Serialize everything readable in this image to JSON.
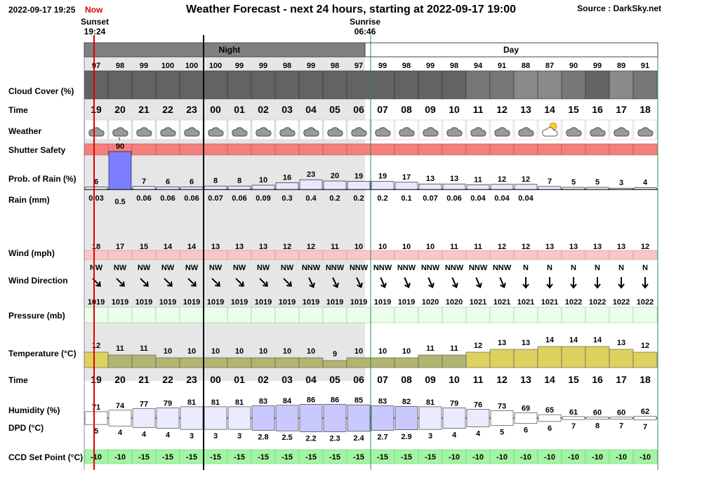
{
  "header": {
    "timestamp": "2022-09-17 19:25",
    "now_label": "Now",
    "title": "Weather Forecast - next 24 hours, starting at 2022-09-17 19:00",
    "source": "Source : DarkSky.net"
  },
  "sun": {
    "sunset_label": "Sunset",
    "sunset_time": "19:24",
    "sunrise_label": "Sunrise",
    "sunrise_time": "06:46"
  },
  "periods": {
    "night": "Night",
    "day": "Day"
  },
  "row_labels": {
    "cloud": "Cloud Cover (%)",
    "time": "Time",
    "weather": "Weather",
    "shutter": "Shutter Safety",
    "prob": "Prob. of Rain (%)",
    "rain": "Rain (mm)",
    "wind": "Wind (mph)",
    "wind_dir": "Wind Direction",
    "pressure": "Pressure (mb)",
    "temperature": "Temperature (°C)",
    "time2": "Time",
    "humidity": "Humidity (%)",
    "dpd": "DPD (°C)",
    "ccd": "CCD Set Point (°C)"
  },
  "colors": {
    "night_band": "#808080",
    "night_bg": "#e6e6e6",
    "cloud_dark": "#636363",
    "cloud_mid": "#777777",
    "cloud_light": "#8a8a8a",
    "shutter": "#f37f7c",
    "rain_prob": "#7d7dff",
    "wind": "#fcc6c6",
    "pressure": "#eaffea",
    "temp_cool": "#b1b570",
    "temp_warm": "#ddd160",
    "humidity": "#c9c9ff",
    "ccd": "#a2f5a2",
    "now_line": "#e00000"
  },
  "chart_data": {
    "type": "table",
    "title": "Weather Forecast - next 24 hours, starting at 2022-09-17 19:00",
    "hours": [
      "19",
      "20",
      "21",
      "22",
      "23",
      "00",
      "01",
      "02",
      "03",
      "04",
      "05",
      "06",
      "07",
      "08",
      "09",
      "10",
      "11",
      "12",
      "13",
      "14",
      "15",
      "16",
      "17",
      "18"
    ],
    "night_hours": [
      "19",
      "20",
      "21",
      "22",
      "23",
      "00",
      "01",
      "02",
      "03",
      "04",
      "05",
      "06"
    ],
    "cloud_cover_pct": [
      97,
      98,
      99,
      100,
      100,
      100,
      99,
      99,
      98,
      99,
      98,
      97,
      99,
      98,
      99,
      98,
      94,
      91,
      88,
      87,
      90,
      99,
      89,
      91
    ],
    "weather_icons": [
      "cloud-icon",
      "rain-icon",
      "cloud-icon",
      "cloud-icon",
      "cloud-icon",
      "cloud-icon",
      "cloud-icon",
      "cloud-icon",
      "cloud-icon",
      "cloud-icon",
      "cloud-icon",
      "cloud-icon",
      "cloud-icon",
      "cloud-icon",
      "cloud-icon",
      "cloud-icon",
      "cloud-icon",
      "cloud-icon",
      "cloud-icon",
      "partly-cloudy-icon",
      "cloud-icon",
      "cloud-icon",
      "cloud-icon",
      "cloud-icon"
    ],
    "prob_rain_pct": [
      6,
      90,
      7,
      6,
      6,
      8,
      8,
      10,
      16,
      23,
      20,
      19,
      19,
      17,
      13,
      13,
      11,
      12,
      12,
      7,
      5,
      5,
      3,
      4
    ],
    "rain_mm": [
      "0.03",
      "0.5",
      "0.06",
      "0.06",
      "0.06",
      "0.07",
      "0.06",
      "0.09",
      "0.3",
      "0.4",
      "0.2",
      "0.2",
      "0.2",
      "0.1",
      "0.07",
      "0.06",
      "0.04",
      "0.04",
      "0.04",
      "",
      "",
      "",
      "",
      ""
    ],
    "wind_mph": [
      18,
      17,
      15,
      14,
      14,
      13,
      13,
      13,
      12,
      12,
      11,
      10,
      10,
      10,
      10,
      11,
      11,
      12,
      12,
      13,
      13,
      13,
      13,
      12
    ],
    "wind_direction": [
      "NW",
      "NW",
      "NW",
      "NW",
      "NW",
      "NW",
      "NW",
      "NW",
      "NW",
      "NNW",
      "NNW",
      "NNW",
      "NNW",
      "NNW",
      "NNW",
      "NNW",
      "NNW",
      "NNW",
      "N",
      "N",
      "N",
      "N",
      "N",
      "N"
    ],
    "wind_arrow_deg": [
      135,
      135,
      135,
      135,
      135,
      135,
      135,
      135,
      135,
      155,
      155,
      155,
      157,
      157,
      157,
      157,
      157,
      157,
      180,
      180,
      180,
      180,
      180,
      180
    ],
    "pressure_mb": [
      1019,
      1019,
      1019,
      1019,
      1019,
      1019,
      1019,
      1019,
      1019,
      1019,
      1019,
      1019,
      1019,
      1019,
      1020,
      1020,
      1021,
      1021,
      1021,
      1021,
      1022,
      1022,
      1022,
      1022
    ],
    "temperature_c": [
      12,
      11,
      11,
      10,
      10,
      10,
      10,
      10,
      10,
      10,
      9,
      10,
      10,
      10,
      11,
      11,
      12,
      13,
      13,
      14,
      14,
      14,
      13,
      12
    ],
    "humidity_pct": [
      71,
      74,
      77,
      79,
      81,
      81,
      81,
      83,
      84,
      86,
      86,
      85,
      83,
      82,
      81,
      79,
      76,
      73,
      69,
      65,
      61,
      60,
      60,
      62
    ],
    "dpd_c": [
      "5",
      "4",
      "4",
      "4",
      "3",
      "3",
      "3",
      "2.8",
      "2.5",
      "2.2",
      "2.3",
      "2.4",
      "2.7",
      "2.9",
      "3",
      "4",
      "4",
      "5",
      "6",
      "6",
      "7",
      "8",
      "7",
      "7"
    ],
    "ccd_set_point_c": [
      -10,
      -10,
      -15,
      -15,
      -15,
      -15,
      -15,
      -15,
      -15,
      -15,
      -15,
      -15,
      -15,
      -15,
      -15,
      -10,
      -10,
      -10,
      -10,
      -10,
      -10,
      -10,
      -10,
      -10
    ]
  }
}
